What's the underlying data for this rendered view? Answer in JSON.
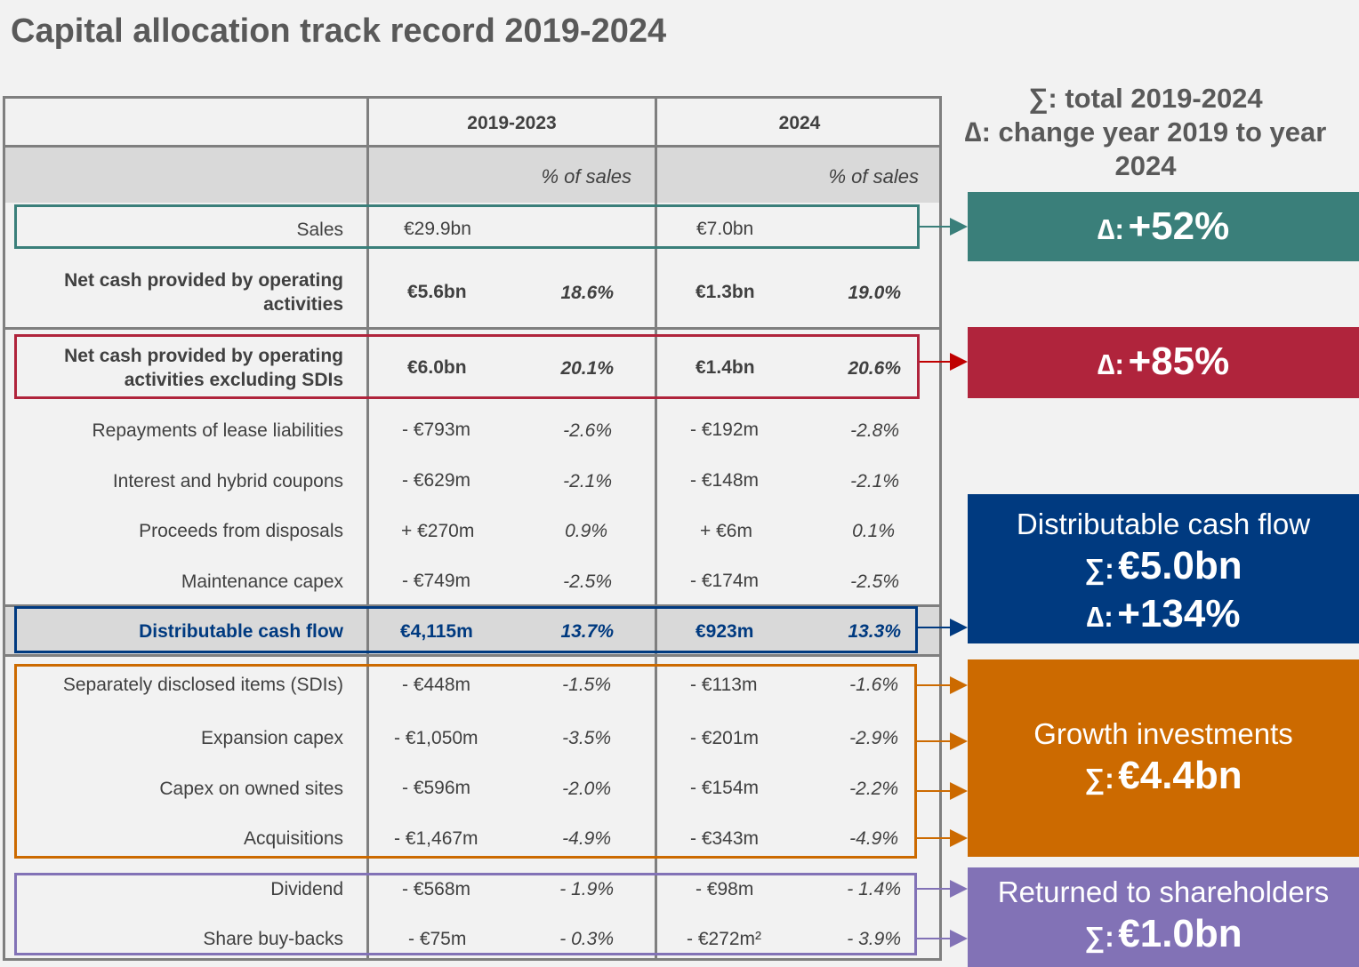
{
  "title": "Capital allocation track record 2019-2024",
  "colors": {
    "teal": "#3a7f7a",
    "crimson": "#b0243c",
    "navy": "#003a80",
    "orange": "#cc6a00",
    "purple": "#8272b6",
    "gray": "#7f7f7f"
  },
  "header": {
    "col1": "2019-2023",
    "col2": "2024",
    "pct1": "% of sales",
    "pct2": "% of sales"
  },
  "rows": [
    {
      "label": "Sales",
      "v1": "€29.9bn",
      "p1": "",
      "v2": "€7.0bn",
      "p2": ""
    },
    {
      "label": "Net cash provided by operating activities",
      "v1": "€5.6bn",
      "p1": "18.6%",
      "v2": "€1.3bn",
      "p2": "19.0%"
    },
    {
      "label": "Net cash provided by operating activities excluding SDIs",
      "v1": "€6.0bn",
      "p1": "20.1%",
      "v2": "€1.4bn",
      "p2": "20.6%"
    },
    {
      "label": "Repayments of lease liabilities",
      "v1": "- €793m",
      "p1": "-2.6%",
      "v2": "- €192m",
      "p2": "-2.8%"
    },
    {
      "label": "Interest and hybrid coupons",
      "v1": "- €629m",
      "p1": "-2.1%",
      "v2": "- €148m",
      "p2": "-2.1%"
    },
    {
      "label": "Proceeds from disposals",
      "v1": "+ €270m",
      "p1": "0.9%",
      "v2": "+ €6m",
      "p2": "0.1%"
    },
    {
      "label": "Maintenance capex",
      "v1": "- €749m",
      "p1": "-2.5%",
      "v2": "- €174m",
      "p2": "-2.5%"
    },
    {
      "label": "Distributable cash flow",
      "v1": "€4,115m",
      "p1": "13.7%",
      "v2": "€923m",
      "p2": "13.3%"
    },
    {
      "label": "Separately disclosed items (SDIs)",
      "v1": "- €448m",
      "p1": "-1.5%",
      "v2": "- €113m",
      "p2": "-1.6%"
    },
    {
      "label": "Expansion capex",
      "v1": "- €1,050m",
      "p1": "-3.5%",
      "v2": "- €201m",
      "p2": "-2.9%"
    },
    {
      "label": "Capex on owned sites",
      "v1": "- €596m",
      "p1": "-2.0%",
      "v2": "- €154m",
      "p2": "-2.2%"
    },
    {
      "label": "Acquisitions",
      "v1": "- €1,467m",
      "p1": "-4.9%",
      "v2": "- €343m",
      "p2": "-4.9%"
    },
    {
      "label": "Dividend",
      "v1": "- €568m",
      "p1": "- 1.9%",
      "v2": "- €98m",
      "p2": "- 1.4%"
    },
    {
      "label": "Share buy-backs",
      "v1": "- €75m",
      "p1": "- 0.3%",
      "v2": "- €272m²",
      "p2": "- 3.9%"
    }
  ],
  "legend": {
    "line1": "∑: total 2019-2024",
    "line2": "∆: change year 2019 to year 2024"
  },
  "panels": {
    "sales": {
      "symbol": "∆:",
      "value": "+52%"
    },
    "opcash": {
      "symbol": "∆:",
      "value": "+85%"
    },
    "dcf": {
      "caption": "Distributable cash flow",
      "sum_symbol": "∑:",
      "sum_value": "€5.0bn",
      "delta_symbol": "∆:",
      "delta_value": "+134%"
    },
    "growth": {
      "caption": "Growth investments",
      "sum_symbol": "∑:",
      "sum_value": "€4.4bn"
    },
    "returned": {
      "caption": "Returned to shareholders",
      "sum_symbol": "∑:",
      "sum_value": "€1.0bn"
    }
  }
}
